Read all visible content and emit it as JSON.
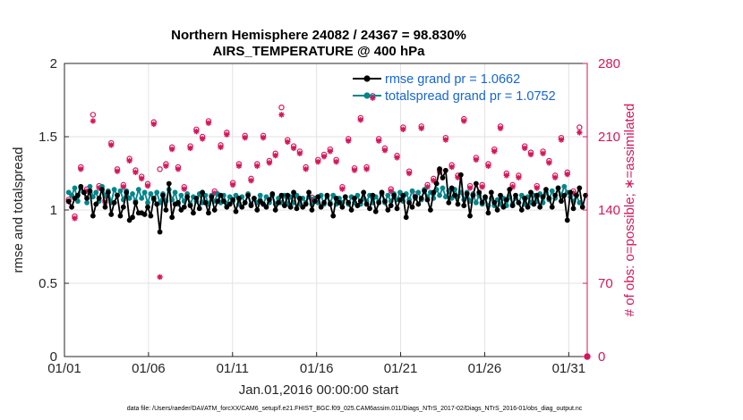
{
  "chart_data": {
    "type": "line",
    "title_line1": "Northern Hemisphere 24082 / 24367 = 98.830%",
    "title_line2": "AIRS_TEMPERATURE @ 400 hPa",
    "xlabel": "Jan.01,2016 00:00:00 start",
    "ylabel_left": "rmse and totalspread",
    "ylabel_right": "# of obs: o=possible; ∗=assimilated",
    "footer": "data file: /Users/raeder/DAI/ATM_forcXX/CAM6_setup/f.e21.FHIST_BGC.f09_025.CAM6assim.011/Diags_NTrS_2017-02/Diags_NTrS_2016-01/obs_diag_output.nc",
    "xlim": [
      0,
      31.1
    ],
    "x_ticks": [
      0,
      5,
      10,
      15,
      20,
      25,
      30
    ],
    "x_tick_labels": [
      "01/01",
      "01/06",
      "01/11",
      "01/16",
      "01/21",
      "01/26",
      "01/31"
    ],
    "ylim_left": [
      0,
      2
    ],
    "y_ticks_left": [
      0,
      0.5,
      1,
      1.5,
      2
    ],
    "y_tick_labels_left": [
      "0",
      "0.5",
      "1",
      "1.5",
      "2"
    ],
    "ylim_right": [
      0,
      280
    ],
    "y_ticks_right": [
      0,
      70,
      140,
      210,
      280
    ],
    "y_tick_labels_right": [
      "0",
      "70",
      "140",
      "210",
      "280"
    ],
    "grid": true,
    "legend_position": "top-right",
    "colors": {
      "rmse": "#000000",
      "spread": "#00868b",
      "obs": "#d6175a",
      "legend_text": "#1565d8",
      "grid": "#e2e2e2"
    },
    "series": [
      {
        "name": "rmse grand pr = 1.0662",
        "values": [
          1.06,
          1.02,
          1.08,
          1.1,
          1.16,
          1.12,
          1.08,
          1.13,
          0.96,
          1.04,
          1.08,
          1.14,
          1.02,
          1.12,
          0.97,
          1.05,
          1.1,
          0.96,
          1.02,
          1.12,
          0.93,
          0.95,
          1.05,
          0.98,
          0.98,
          0.97,
          1.02,
          0.96,
          1.08,
          1.04,
          0.85,
          1.1,
          1.0,
          1.18,
          0.95,
          1.04,
          1.05,
          1.0,
          1.02,
          1.09,
          1.03,
          0.98,
          1.08,
          1.01,
          1.12,
          1.05,
          0.98,
          1.09,
          1.0,
          1.06,
          1.1,
          1.06,
          1.02,
          1.04,
          1.07,
          0.99,
          1.08,
          1.02,
          1.05,
          1.1,
          1.03,
          1.08,
          1.0,
          1.06,
          1.04,
          1.02,
          1.07,
          1.11,
          1.0,
          1.05,
          1.1,
          1.03,
          1.1,
          1.02,
          1.12,
          1.01,
          1.08,
          1.02,
          1.04,
          1.12,
          1.0,
          1.06,
          1.09,
          1.02,
          1.05,
          1.1,
          1.04,
          0.96,
          1.08,
          1.05,
          1.02,
          1.09,
          1.05,
          1.0,
          1.08,
          1.03,
          1.06,
          1.12,
          1.04,
          1.01,
          1.1,
          0.99,
          1.05,
          1.12,
          1.06,
          1.0,
          1.03,
          1.1,
          1.01,
          1.07,
          1.1,
          0.95,
          1.05,
          1.02,
          1.09,
          1.04,
          1.08,
          1.13,
          1.07,
          1.0,
          1.12,
          1.18,
          1.28,
          1.22,
          1.27,
          1.05,
          1.15,
          1.1,
          1.04,
          1.24,
          1.03,
          1.11,
          0.96,
          1.1,
          1.18,
          1.12,
          1.05,
          1.09,
          0.98,
          1.12,
          1.05,
          1.0,
          1.1,
          1.02,
          1.07,
          1.14,
          1.03,
          1.1,
          1.05,
          1.0,
          1.08,
          1.02,
          1.12,
          1.04,
          1.1,
          1.02,
          1.09,
          1.14,
          1.08,
          1.02,
          1.1,
          1.15,
          1.06,
          1.1,
          0.93,
          1.12,
          1.01,
          1.1,
          1.15,
          1.02,
          1.1
        ]
      },
      {
        "name": "totalspread grand pr = 1.0752",
        "values": [
          1.12,
          1.1,
          1.15,
          1.06,
          1.15,
          1.12,
          1.05,
          1.16,
          1.09,
          1.12,
          1.06,
          1.16,
          1.1,
          1.13,
          1.05,
          1.14,
          1.1,
          1.13,
          1.07,
          1.13,
          1.08,
          1.11,
          1.06,
          1.14,
          1.08,
          1.12,
          1.05,
          1.11,
          1.07,
          1.12,
          1.05,
          1.11,
          1.06,
          1.14,
          1.07,
          1.12,
          1.04,
          1.1,
          1.06,
          1.11,
          1.04,
          1.09,
          1.06,
          1.11,
          1.05,
          1.1,
          1.04,
          1.1,
          1.06,
          1.11,
          1.05,
          1.1,
          1.04,
          1.09,
          1.06,
          1.1,
          1.04,
          1.09,
          1.05,
          1.11,
          1.04,
          1.08,
          1.05,
          1.1,
          1.04,
          1.09,
          1.05,
          1.1,
          1.04,
          1.08,
          1.05,
          1.1,
          1.04,
          1.09,
          1.05,
          1.1,
          1.04,
          1.08,
          1.05,
          1.09,
          1.04,
          1.08,
          1.05,
          1.1,
          1.04,
          1.09,
          1.05,
          1.1,
          1.04,
          1.08,
          1.05,
          1.09,
          1.04,
          1.09,
          1.05,
          1.1,
          1.04,
          1.08,
          1.06,
          1.1,
          1.05,
          1.09,
          1.06,
          1.11,
          1.05,
          1.1,
          1.06,
          1.11,
          1.07,
          1.12,
          1.06,
          1.11,
          1.07,
          1.13,
          1.08,
          1.12,
          1.07,
          1.14,
          1.09,
          1.12,
          1.08,
          1.14,
          1.1,
          1.15,
          1.09,
          1.13,
          1.08,
          1.14,
          1.09,
          1.12,
          1.07,
          1.12,
          1.06,
          1.11,
          1.05,
          1.1,
          1.04,
          1.08,
          1.03,
          1.08,
          1.03,
          1.07,
          1.04,
          1.08,
          1.03,
          1.09,
          1.04,
          1.08,
          1.05,
          1.1,
          1.04,
          1.09,
          1.05,
          1.1,
          1.06,
          1.11,
          1.05,
          1.12,
          1.07,
          1.13,
          1.08,
          1.15,
          1.1,
          1.16,
          1.12,
          1.09,
          1.06,
          1.1,
          1.05
        ]
      }
    ],
    "obs_possible": [
      150,
      142,
      134,
      163,
      181,
      167,
      160,
      172,
      231,
      168,
      163,
      188,
      149,
      198,
      204,
      142,
      179,
      203,
      164,
      229,
      189,
      190,
      178,
      208,
      172,
      168,
      165,
      159,
      224,
      172,
      179,
      219,
      184,
      215,
      200,
      212,
      181,
      167,
      162,
      178,
      201,
      183,
      217,
      200,
      210,
      205,
      225,
      170,
      158,
      180,
      202,
      190,
      214,
      207,
      166,
      226,
      184,
      201,
      211,
      231,
      170,
      202,
      184,
      203,
      211,
      212,
      187,
      216,
      194,
      183,
      238,
      228,
      207,
      196,
      201,
      212,
      196,
      178,
      181,
      171,
      152,
      209,
      188,
      203,
      193,
      209,
      198,
      167,
      188,
      196,
      162,
      195,
      208,
      188,
      180,
      211,
      228,
      206,
      181,
      182,
      249,
      201,
      208,
      170,
      199,
      213,
      160,
      187,
      192,
      167,
      219,
      185,
      177,
      199,
      155,
      161,
      220,
      184,
      164,
      201,
      170,
      229,
      178,
      184,
      209,
      170,
      183,
      198,
      173,
      163,
      227,
      215,
      163,
      206,
      190,
      155,
      164,
      188,
      184,
      209,
      198,
      210,
      220,
      166,
      175,
      173,
      164,
      227,
      173,
      187,
      201,
      189,
      195,
      173,
      163,
      181,
      196,
      182,
      187,
      185,
      173,
      164,
      209,
      150,
      176,
      182,
      158,
      188,
      219,
      181
    ],
    "obs_assimilated": [
      148,
      140,
      132,
      161,
      179,
      165,
      158,
      170,
      225,
      166,
      161,
      186,
      147,
      196,
      202,
      140,
      177,
      201,
      162,
      227,
      187,
      188,
      176,
      206,
      170,
      166,
      163,
      157,
      222,
      170,
      76,
      217,
      182,
      213,
      198,
      210,
      179,
      165,
      160,
      176,
      199,
      181,
      215,
      198,
      208,
      203,
      223,
      168,
      156,
      178,
      200,
      188,
      212,
      205,
      164,
      224,
      182,
      199,
      209,
      229,
      168,
      200,
      182,
      201,
      209,
      210,
      185,
      214,
      192,
      181,
      231,
      222,
      205,
      194,
      199,
      210,
      194,
      176,
      179,
      169,
      150,
      207,
      186,
      201,
      191,
      207,
      196,
      165,
      186,
      194,
      160,
      193,
      206,
      186,
      178,
      209,
      226,
      204,
      179,
      180,
      247,
      199,
      206,
      168,
      197,
      211,
      158,
      185,
      190,
      165,
      217,
      183,
      175,
      197,
      153,
      159,
      218,
      182,
      162,
      199,
      168,
      227,
      176,
      182,
      207,
      168,
      181,
      196,
      171,
      161,
      225,
      213,
      161,
      204,
      188,
      153,
      162,
      186,
      182,
      207,
      196,
      208,
      218,
      164,
      173,
      171,
      162,
      225,
      171,
      185,
      199,
      187,
      193,
      171,
      161,
      179,
      194,
      180,
      185,
      183,
      171,
      162,
      207,
      148,
      174,
      180,
      156,
      186,
      214,
      179
    ]
  }
}
